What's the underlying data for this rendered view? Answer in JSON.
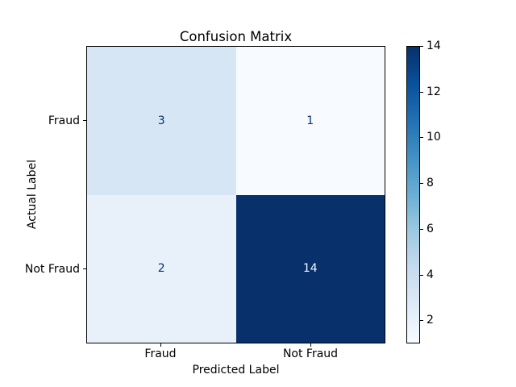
{
  "figure": {
    "background": "#ffffff"
  },
  "chart_data": {
    "type": "heatmap",
    "title": "Confusion Matrix",
    "xlabel": "Predicted Label",
    "ylabel": "Actual Label",
    "x_categories": [
      "Fraud",
      "Not Fraud"
    ],
    "y_categories": [
      "Fraud",
      "Not Fraud"
    ],
    "matrix": [
      [
        3,
        1
      ],
      [
        2,
        14
      ]
    ],
    "colormap": "Blues",
    "vmin": 1,
    "vmax": 14,
    "grid": false,
    "cells": [
      {
        "row": "Fraud",
        "col": "Fraud",
        "value": "3",
        "bg": "#d7e6f4",
        "fg": "#08306b"
      },
      {
        "row": "Fraud",
        "col": "Not Fraud",
        "value": "1",
        "bg": "#f7fbff",
        "fg": "#08306b"
      },
      {
        "row": "Not Fraud",
        "col": "Fraud",
        "value": "2",
        "bg": "#e8f1fa",
        "fg": "#08306b"
      },
      {
        "row": "Not Fraud",
        "col": "Not Fraud",
        "value": "14",
        "bg": "#08306b",
        "fg": "#f7fbff"
      }
    ],
    "colorbar": {
      "position": "right",
      "tick_values": [
        14,
        12,
        10,
        8,
        6,
        4,
        2
      ],
      "ticks": [
        "14",
        "12",
        "10",
        "8",
        "6",
        "4",
        "2"
      ],
      "gradient_stops": [
        "#f7fbff",
        "#deebf7",
        "#c6dbef",
        "#9ecae1",
        "#6baed6",
        "#4292c6",
        "#2171b5",
        "#08519c",
        "#08306b"
      ]
    }
  }
}
